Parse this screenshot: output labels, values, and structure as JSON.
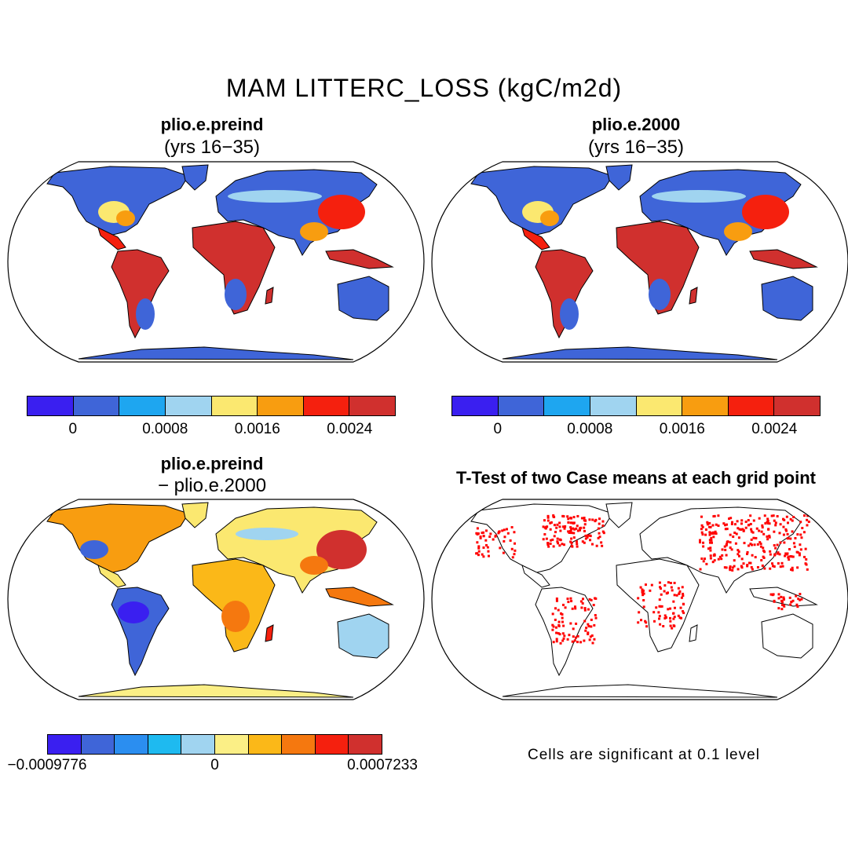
{
  "title": "MAM LITTERC_LOSS (kgC/m2d)",
  "panels": [
    {
      "title": "plio.e.preind",
      "subtitle": "(yrs 16−35)",
      "style": "mean1"
    },
    {
      "title": "plio.e.2000",
      "subtitle": "(yrs 16−35)",
      "style": "mean2"
    },
    {
      "title": "plio.e.preind",
      "subtitle": "− plio.e.2000",
      "style": "diff"
    },
    {
      "title": "T-Test of two Case means at each grid point",
      "subtitle": "",
      "style": "ttest"
    }
  ],
  "colorbars": {
    "mean": {
      "colors": [
        "#3a1ff0",
        "#3f65d8",
        "#1ea6f0",
        "#a0d4f0",
        "#fbe870",
        "#f89d10",
        "#f5200e",
        "#d0302e"
      ],
      "ticks": [
        "0",
        "0.0008",
        "0.0016",
        "0.0024"
      ]
    },
    "diff": {
      "colors": [
        "#3a1ff0",
        "#3f65d8",
        "#2b8ef0",
        "#1ebaf0",
        "#a0d4f0",
        "#fbef86",
        "#fbb818",
        "#f5780f",
        "#f5200e",
        "#d0302e"
      ],
      "ticks": [
        "−0.0009776",
        "0",
        "0.0007233"
      ]
    }
  },
  "ttest_note": "Cells are significant at 0.1 level"
}
